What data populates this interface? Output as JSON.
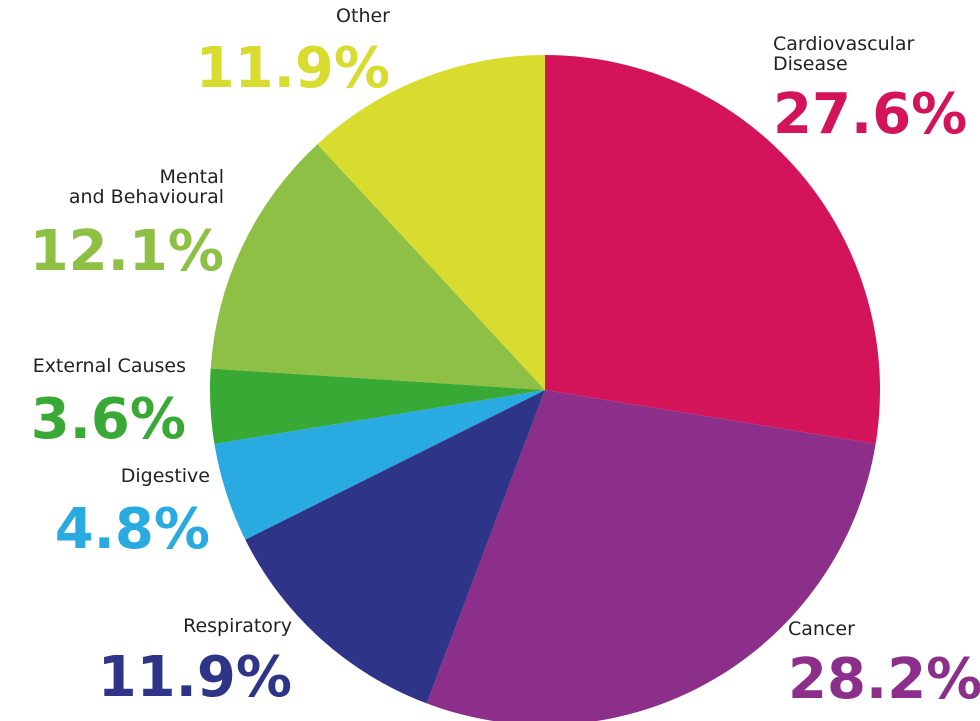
{
  "chart_data": {
    "type": "pie",
    "categories": [
      "Cardiovascular Disease",
      "Cancer",
      "Respiratory",
      "Digestive",
      "External Causes",
      "Mental and Behavioural",
      "Other"
    ],
    "values": [
      27.6,
      28.2,
      11.9,
      4.8,
      3.6,
      12.1,
      11.9
    ],
    "value_labels": [
      "27.6%",
      "28.2%",
      "11.9%",
      "4.8%",
      "3.6%",
      "12.1%",
      "11.9%"
    ],
    "colors": [
      "#d4145a",
      "#8b2f8a",
      "#2e3589",
      "#29abe2",
      "#39a935",
      "#8dc045",
      "#d7dc2f"
    ]
  }
}
